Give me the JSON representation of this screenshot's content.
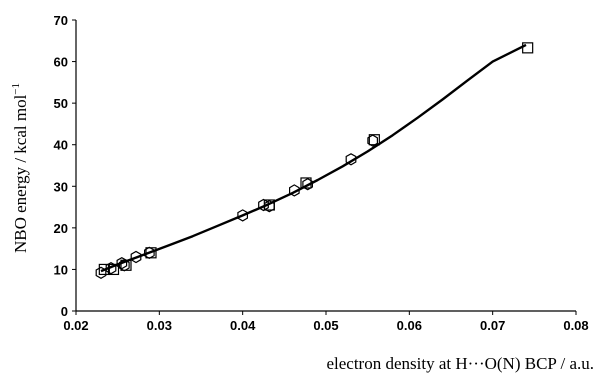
{
  "chart_data": {
    "type": "scatter",
    "title": "",
    "xlabel": "electron density at H···O(N) BCP / a.u.",
    "ylabel": "NBO energy / kcal mol",
    "ylabel_superscript": "−1",
    "xlim": [
      0.02,
      0.08
    ],
    "ylim": [
      0,
      70
    ],
    "xticks": [
      0.02,
      0.03,
      0.04,
      0.05,
      0.06,
      0.07,
      0.08
    ],
    "xtick_labels": [
      "0.02",
      "0.03",
      "0.04",
      "0.05",
      "0.06",
      "0.07",
      "0.08"
    ],
    "yticks": [
      0,
      10,
      20,
      30,
      40,
      50,
      60,
      70
    ],
    "ytick_labels": [
      "0",
      "10",
      "20",
      "30",
      "40",
      "50",
      "60",
      "70"
    ],
    "grid": false,
    "series": [
      {
        "marker": "hexagon",
        "color": "#000000",
        "x": [
          0.023,
          0.0242,
          0.0255,
          0.0258,
          0.0272,
          0.0288,
          0.04,
          0.0425,
          0.0432,
          0.0462,
          0.0478,
          0.053,
          0.0556
        ],
        "y": [
          9.2,
          10.3,
          11.5,
          11.0,
          13.0,
          14.0,
          23.0,
          25.5,
          25.2,
          29.0,
          30.5,
          36.5,
          41.0
        ]
      },
      {
        "marker": "square",
        "color": "#000000",
        "x": [
          0.0234,
          0.0245,
          0.026,
          0.029,
          0.0432,
          0.0476,
          0.0558,
          0.0742
        ],
        "y": [
          10.0,
          10.0,
          11.0,
          14.0,
          25.5,
          30.8,
          41.2,
          63.3
        ]
      }
    ],
    "fit_curve": {
      "type": "line",
      "color": "#000000",
      "x": [
        0.023,
        0.025,
        0.027,
        0.029,
        0.031,
        0.034,
        0.037,
        0.04,
        0.043,
        0.046,
        0.049,
        0.052,
        0.055,
        0.058,
        0.061,
        0.064,
        0.067,
        0.07,
        0.074
      ],
      "y": [
        9.6,
        11.2,
        12.7,
        14.2,
        15.7,
        18.0,
        20.5,
        23.0,
        25.6,
        28.4,
        31.5,
        34.8,
        38.4,
        42.3,
        46.5,
        50.9,
        55.5,
        60.0,
        64.0
      ]
    }
  }
}
